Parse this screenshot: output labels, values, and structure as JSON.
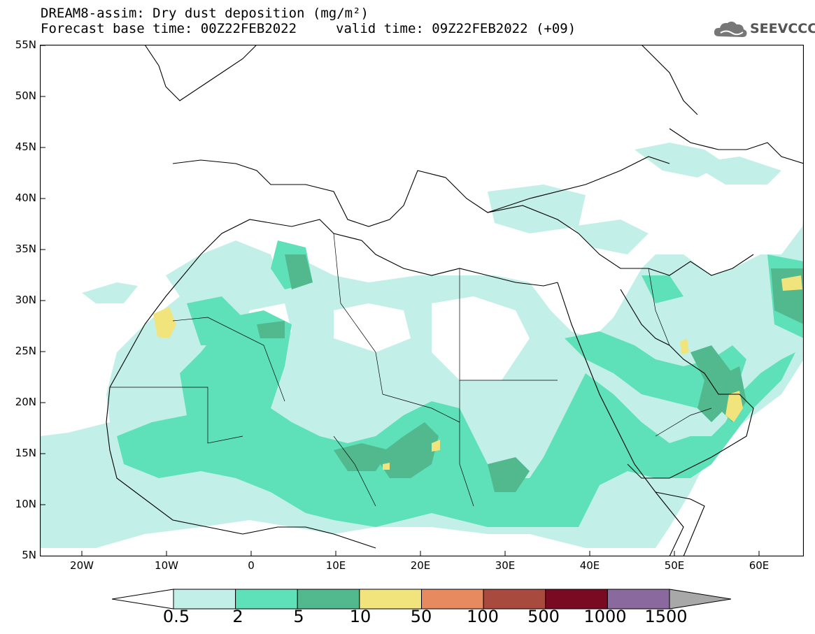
{
  "header": {
    "title_line1": "DREAM8-assim: Dry dust deposition (mg/m²)",
    "title_line2a": "Forecast base time: 00Z22FEB2022",
    "title_line2b": "valid time: 09Z22FEB2022 (+09)",
    "logo_text": "SEEVCCC",
    "logo_icon": "cloud-icon"
  },
  "map": {
    "lat_labels": [
      "55N",
      "50N",
      "45N",
      "40N",
      "35N",
      "30N",
      "25N",
      "20N",
      "15N",
      "10N",
      "5N"
    ],
    "lon_labels": [
      "20W",
      "10W",
      "0",
      "10E",
      "20E",
      "30E",
      "40E",
      "50E",
      "60E"
    ]
  },
  "legend": {
    "labels": [
      "0.5",
      "2",
      "5",
      "10",
      "50",
      "100",
      "500",
      "1000",
      "1500"
    ],
    "colors": [
      "#ffffff",
      "#c2f0e8",
      "#5ee0b8",
      "#52b88e",
      "#f2e47c",
      "#e88a60",
      "#a94a3e",
      "#7a0a22",
      "#8a6a9e",
      "#a8a8a8"
    ]
  }
}
